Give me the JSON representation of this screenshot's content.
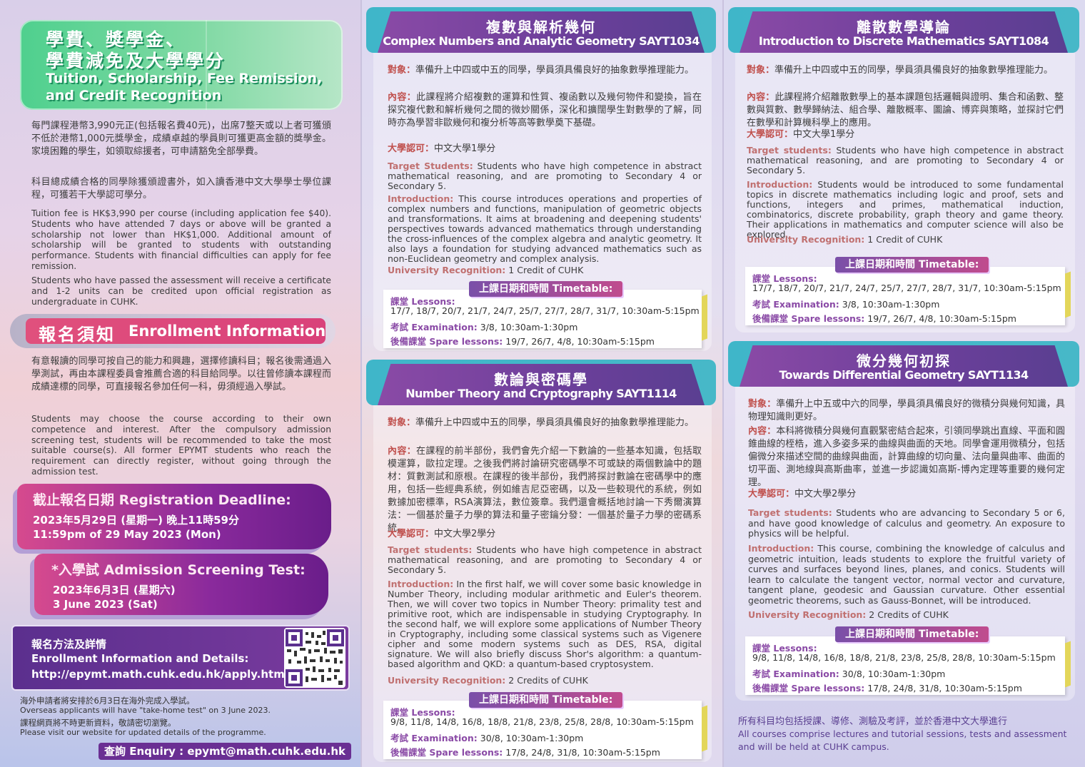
{
  "col1": {
    "title_zh_1": "學費、獎學金、",
    "title_zh_2": "學費減免及大學學分",
    "title_en_1": "Tuition, Scholarship, Fee Remission,",
    "title_en_2": "and Credit Recognition",
    "tuition_zh_1": "每門課程港幣3,990元正(包括報名費40元)，出席7整天或以上者可獲頒不低於港幣1,000元獎學金，成績卓越的學員則可獲更高金額的獎學金。家境困難的學生，如領取綜援者，可申請豁免全部學費。",
    "tuition_zh_2": "科目總成績合格的同學除獲頒證書外，如入讀香港中文大學學士學位課程，可獲若干大學認可學分。",
    "tuition_en_1": "Tuition fee is HK$3,990 per course (including application fee $40). Students who have attended 7 days or above will be granted a scholarship not lower than HK$1,000. Additional amount of scholarship will be granted to students with outstanding performance. Students with financial difficulties can apply for fee remission.",
    "tuition_en_2": "Students who have passed the assessment will receive a certificate and 1-2 units can be credited upon official registration as undergraduate in CUHK.",
    "enroll_zh": "報名須知",
    "enroll_en": "Enrollment Information",
    "enroll_text_zh": "有意報讀的同學可按自己的能力和興趣，選擇修讀科目；報名後需通過入學測試，再由本課程委員會推薦合適的科目給同學。以往曾修讀本課程而成績達標的同學，可直接報名參加任何一科，毋須經過入學試。",
    "enroll_text_en": "Students may choose the course according to their own competence and interest. After the compulsory admission screening test, students will be recommended to take the most suitable course(s). All former EPYMT students who reach the requirement can directly register, without going through the admission test.",
    "deadline_title": "截止報名日期 Registration Deadline:",
    "deadline_zh": "2023年5月29日 (星期一) 晚上11時59分",
    "deadline_en": "11:59pm of 29 May 2023 (Mon)",
    "test_title": "*入學試 Admission Screening Test:",
    "test_zh": "2023年6月3日 (星期六)",
    "test_en": "3 June 2023 (Sat)",
    "apply_zh": "報名方法及詳情",
    "apply_en": "Enrollment Information and Details:",
    "apply_url": "http://epymt.math.cuhk.edu.hk/apply.html",
    "note_1": "海外申請者將安排於6月3日在海外完成入學試。",
    "note_2": "Overseas applicants will have \"take-home test\" on 3 June 2023.",
    "note_3": "課程網頁將不時更新資料，敬請密切瀏覽。",
    "note_4": "Please visit our website for updated details of the programme.",
    "enquiry": "查詢 Enquiry : epymt@math.cuhk.edu.hk"
  },
  "labels": {
    "target_zh": "對象：",
    "content_zh": "內容：",
    "credit_zh": "大學認可：",
    "target_en_a": "Target Students:",
    "target_en_b": "Target students:",
    "intro_en": "Introduction:",
    "uni_en": "University Recognition:",
    "timetable": "上課日期和時間 Timetable:",
    "lessons": "課堂 Lessons:",
    "exam": "考試 Examination:",
    "spare": "後備課堂 Spare lessons:"
  },
  "courses": [
    {
      "title_zh": "複數與解析幾何",
      "title_en": "Complex Numbers and Analytic Geometry SAYT1034",
      "target_zh": "準備升上中四或中五的同學，學員須具備良好的抽象數學推理能力。",
      "content_zh": "此課程將介紹複數的運算和性質、複函數以及幾何物件和變換，旨在探究複代數和解析幾何之間的微妙關係，深化和擴闊學生對數學的了解，同時亦為學習非歐幾何和複分析等高等數學奠下基礎。",
      "credit_zh": "中文大學1學分",
      "target_en": "Students who have high competence in abstract mathematical reasoning, and are promoting to Secondary 4 or Secondary 5.",
      "intro_en": "This course introduces operations and properties of complex numbers and functions, manipulation of geometric objects and transformations. It aims at broadening and deepening students' perspectives towards advanced mathematics through understanding the cross-influences of the complex algebra and analytic geometry. It also lays a foundation for studying advanced mathematics such as non-Euclidean geometry and complex analysis.",
      "uni_en": "1 Credit of CUHK",
      "lessons": "17/7, 18/7, 20/7, 21/7, 24/7, 25/7, 27/7, 28/7, 31/7, 10:30am-5:15pm",
      "exam": "3/8, 10:30am-1:30pm",
      "spare": "19/7, 26/7, 4/8, 10:30am-5:15pm"
    },
    {
      "title_zh": "數論與密碼學",
      "title_en": "Number Theory and Cryptography SAYT1114",
      "target_zh": "準備升上中四或中五的同學，學員須具備良好的抽象數學推理能力。",
      "content_zh": "在課程的前半部份，我們會先介紹一下數論的一些基本知識，包括取模運算，歐拉定理。之後我們將討論研究密碼學不可或缺的兩個數論中的題材：質數測試和原根。在課程的後半部份，我們將探討數論在密碼學中的應用，包括一些經典系統，例如維吉尼亞密碼，以及一些較現代的系統，例如數據加密標準，RSA演算法，數位簽章。我們還會概括地討論一下秀爾演算法：一個基於量子力學的算法和量子密鑰分發：一個基於量子力學的密碼系統。",
      "credit_zh": "中文大學2學分",
      "target_en": "Students who have high competence in abstract mathematical reasoning, and are promoting to Secondary 4 or Secondary 5.",
      "intro_en": "In the first half, we will cover some basic knowledge in Number Theory, including modular arithmetic and Euler's theorem. Then, we will cover two topics in Number Theory: primality test and primitive root, which are indispensable in studying Cryptography. In the second half, we will explore some applications of Number Theory in Cryptography, including some classical systems such as Vigenere cipher and some modern systems such as DES, RSA, digital signature. We will also briefly discuss Shor's algorithm: a quantum-based algorithm and QKD: a quantum-based cryptosystem.",
      "uni_en": "2 Credits of CUHK",
      "lessons": "9/8, 11/8, 14/8, 16/8, 18/8, 21/8, 23/8, 25/8, 28/8, 10:30am-5:15pm",
      "exam": "30/8, 10:30am-1:30pm",
      "spare": "17/8, 24/8, 31/8, 10:30am-5:15pm"
    },
    {
      "title_zh": "離散數學導論",
      "title_en": "Introduction to Discrete Mathematics SAYT1084",
      "target_zh": "準備升上中四或中五的同學，學員須具備良好的抽象數學推理能力。",
      "content_zh": "此課程將介紹離散數學上的基本課題包括邏輯與證明、集合和函數、整數與質數、數學歸納法、組合學、離散概率、圖論、博弈與策略，並探討它們在數學和計算機科學上的應用。",
      "credit_zh": "中文大學1學分",
      "target_en": "Students who have high competence in abstract mathematical reasoning, and are promoting to Secondary 4 or Secondary 5.",
      "intro_en": "Students would be introduced to some fundamental topics in discrete mathematics including logic and proof, sets and functions, integers and primes, mathematical induction, combinatorics, discrete probability, graph theory and game theory. Their applications in mathematics and computer science will also be explored.",
      "uni_en": "1 Credit of CUHK",
      "lessons": "17/7, 18/7, 20/7, 21/7, 24/7, 25/7, 27/7, 28/7, 31/7, 10:30am-5:15pm",
      "exam": "3/8, 10:30am-1:30pm",
      "spare": "19/7, 26/7, 4/8, 10:30am-5:15pm"
    },
    {
      "title_zh": "微分幾何初探",
      "title_en": "Towards Differential Geometry SAYT1134",
      "target_zh": "準備升上中五或中六的同學，學員須具備良好的微積分與幾何知識，具物理知識則更好。",
      "content_zh": "本科將微積分與幾何直觀緊密結合起來，引領同學跳出直線、平面和圓錐曲線的桎梏，進入多姿多采的曲線與曲面的天地。同學會運用微積分，包括偏微分來描述空間的曲線與曲面，計算曲線的切向量、法向量與曲率、曲面的切平面、測地線與高斯曲率，並進一步認識如高斯-博內定理等重要的幾何定理。",
      "credit_zh": "中文大學2學分",
      "target_en": "Students who are advancing to Secondary 5 or 6, and have good knowledge of calculus and geometry. An exposure to physics will be helpful.",
      "intro_en": "This course, combining the knowledge of calculus and geometric intuition, leads students to explore the fruitful variety of curves and surfaces beyond lines, planes, and conics. Students will learn to calculate the tangent vector, normal vector and curvature, tangent plane, geodesic and Gaussian curvature. Other essential geometric theorems, such as Gauss-Bonnet, will be introduced.",
      "uni_en": "2 Credits of CUHK",
      "lessons": "9/8, 11/8, 14/8, 16/8, 18/8, 21/8, 23/8, 25/8, 28/8, 10:30am-5:15pm",
      "exam": "30/8, 10:30am-1:30pm",
      "spare": "17/8, 24/8, 31/8, 10:30am-5:15pm"
    }
  ],
  "footer_zh": "所有科目均包括授課、導修、測驗及考評，並於香港中文大學進行",
  "footer_en": "All courses comprise lectures and tutorial sessions, tests and assessment and will be held at CUHK campus.",
  "colors": {
    "purple": "#6b3f9a",
    "teal": "#3fb6c9",
    "magenta": "#c2317f",
    "label": "#c0504d"
  }
}
